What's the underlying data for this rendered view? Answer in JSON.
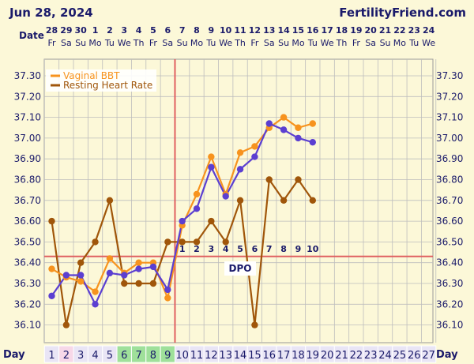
{
  "header": {
    "date": "Jun 28, 2024",
    "site": "FertilityFriend.com",
    "date_label": "Date",
    "day_label": "Day",
    "dpo_label": "DPO"
  },
  "colors": {
    "bbt": "#f7931e",
    "rhr": "#a0560a",
    "fitted": "#5b3fd1",
    "coverline": "#e06060",
    "ovulation_line": "#e06060",
    "grid": "#bdbdbd",
    "plot_bg": "#fcf8d8",
    "day_fill_default": "#e9e5f5",
    "day_fill_green": "#9fe09a",
    "day_fill_pink": "#f7d8e8",
    "text": "#1a1a6a"
  },
  "calendar": {
    "dates": [
      "28",
      "29",
      "30",
      "1",
      "2",
      "3",
      "4",
      "5",
      "6",
      "7",
      "8",
      "9",
      "10",
      "11",
      "12",
      "13",
      "14",
      "15",
      "16",
      "17",
      "18",
      "19",
      "20",
      "21",
      "22",
      "23",
      "24"
    ],
    "weekdays": [
      "Fr",
      "Sa",
      "Su",
      "Mo",
      "Tu",
      "We",
      "Th",
      "Fr",
      "Sa",
      "Su",
      "Mo",
      "Tu",
      "We",
      "Th",
      "Fr",
      "Sa",
      "Su",
      "Mo",
      "Tu",
      "We",
      "Th",
      "Fr",
      "Sa",
      "Su",
      "Mo",
      "Tu",
      "We"
    ],
    "cycle_days": [
      "1",
      "2",
      "3",
      "4",
      "5",
      "6",
      "7",
      "8",
      "9",
      "10",
      "11",
      "12",
      "13",
      "14",
      "15",
      "16",
      "17",
      "18",
      "19",
      "20",
      "21",
      "22",
      "23",
      "24",
      "25",
      "26",
      "27"
    ],
    "day_fills": [
      "default",
      "pink",
      "default",
      "default",
      "default",
      "green",
      "green",
      "green",
      "green",
      "default",
      "default",
      "default",
      "default",
      "default",
      "default",
      "default",
      "default",
      "default",
      "default",
      "default",
      "default",
      "default",
      "default",
      "default",
      "default",
      "default",
      "default"
    ],
    "dpo_numbers": [
      "1",
      "2",
      "3",
      "4",
      "5",
      "6",
      "7",
      "8",
      "9",
      "10"
    ]
  },
  "chart_data": {
    "type": "line",
    "y_ticks": [
      "37.30",
      "37.20",
      "37.10",
      "37.00",
      "36.90",
      "36.80",
      "36.70",
      "36.60",
      "36.50",
      "36.40",
      "36.30",
      "36.20",
      "36.10"
    ],
    "ylim": [
      36.05,
      37.33
    ],
    "coverline": 36.43,
    "ovulation_after_day": 9,
    "series": [
      {
        "name": "Vaginal BBT",
        "key": "bbt",
        "x": [
          1,
          2,
          3,
          4,
          5,
          6,
          7,
          8,
          9,
          10,
          11,
          12,
          13,
          14,
          15,
          16,
          17,
          18,
          19
        ],
        "values": [
          36.37,
          36.33,
          36.31,
          36.26,
          36.42,
          36.35,
          36.4,
          36.4,
          36.23,
          36.58,
          36.73,
          36.91,
          36.73,
          36.93,
          36.96,
          37.05,
          37.1,
          37.05,
          37.07
        ]
      },
      {
        "name": "Resting Heart Rate",
        "key": "rhr",
        "x": [
          1,
          2,
          3,
          4,
          5,
          6,
          7,
          8,
          9,
          10,
          11,
          12,
          13,
          14,
          15,
          16,
          17,
          18,
          19
        ],
        "values": [
          36.6,
          36.1,
          36.4,
          36.5,
          36.7,
          36.3,
          36.3,
          36.3,
          36.5,
          36.5,
          36.5,
          36.6,
          36.5,
          36.7,
          36.1,
          36.8,
          36.7,
          36.8,
          36.7
        ]
      },
      {
        "key": "fitted",
        "x": [
          1,
          2,
          3,
          4,
          5,
          6,
          7,
          8,
          9,
          10,
          11,
          12,
          13,
          14,
          15,
          16,
          17,
          18,
          19
        ],
        "values": [
          36.24,
          36.34,
          36.34,
          36.2,
          36.35,
          36.34,
          36.37,
          36.38,
          36.27,
          36.6,
          36.66,
          36.86,
          36.72,
          36.85,
          36.91,
          37.07,
          37.04,
          37.0,
          36.98
        ]
      }
    ],
    "legend_position": "top-left"
  }
}
